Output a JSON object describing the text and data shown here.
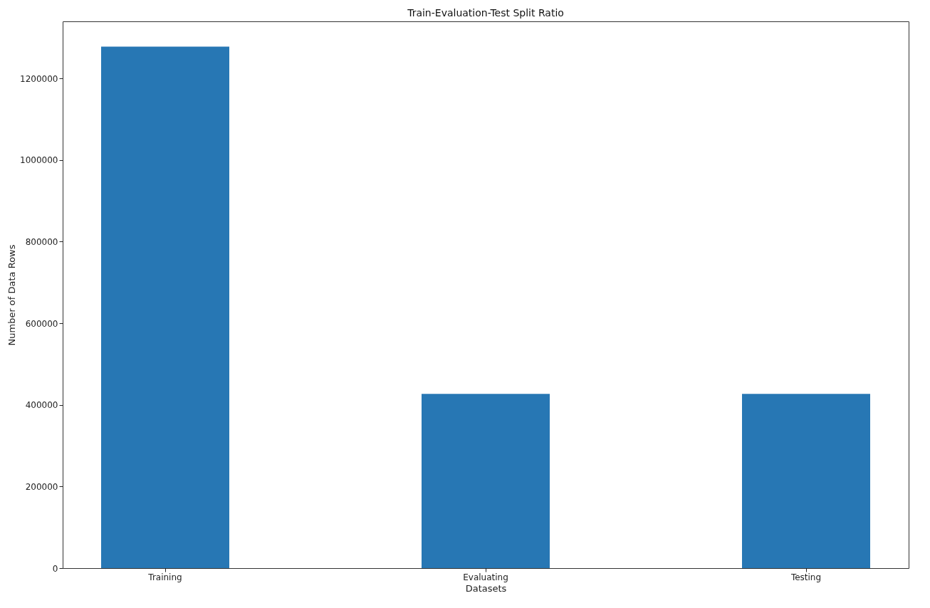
{
  "chart_data": {
    "type": "bar",
    "title": "Train-Evaluation-Test Split Ratio",
    "xlabel": "Datasets",
    "ylabel": "Number of Data Rows",
    "categories": [
      "Training",
      "Evaluating",
      "Testing"
    ],
    "values": [
      1278000,
      427000,
      427000
    ],
    "color": "#2777b4",
    "ylim": [
      0,
      1340000
    ],
    "yticks": [
      0,
      200000,
      400000,
      600000,
      800000,
      1000000,
      1200000
    ],
    "grid": false
  }
}
